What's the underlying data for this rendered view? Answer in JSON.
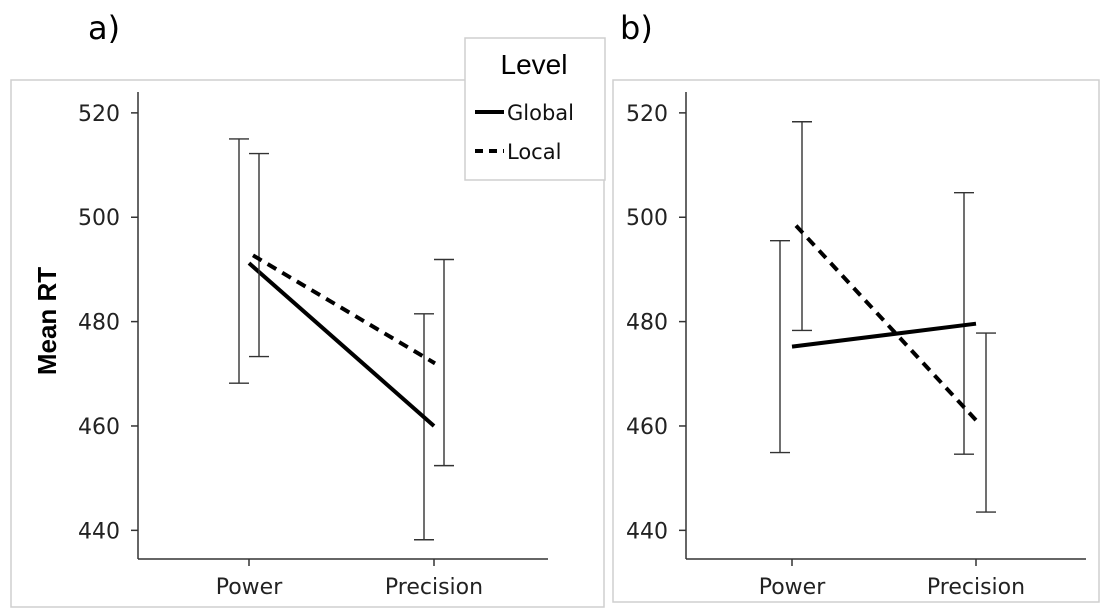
{
  "chart_data": [
    {
      "type": "line",
      "panel_label": "a)",
      "ylabel": "Mean RT",
      "xlabel": "",
      "categories": [
        "Power",
        "Precision"
      ],
      "ylim": [
        437,
        524
      ],
      "yticks": [
        440,
        460,
        480,
        500,
        520
      ],
      "grid": false,
      "series": [
        {
          "name": "Global",
          "style": "solid",
          "values": [
            491.2,
            460.0
          ],
          "errors": [
            [
              468.2,
              515.0
            ],
            [
              438.2,
              481.5
            ]
          ]
        },
        {
          "name": "Local",
          "style": "dashed",
          "values": [
            492.7,
            472.0
          ],
          "errors": [
            [
              473.3,
              512.2
            ],
            [
              452.4,
              491.9
            ]
          ]
        }
      ],
      "legend": {
        "title": "Level",
        "placement": "top-right",
        "entries": [
          "Global",
          "Local"
        ]
      }
    },
    {
      "type": "line",
      "panel_label": "b)",
      "ylabel": "",
      "xlabel": "",
      "categories": [
        "Power",
        "Precision"
      ],
      "ylim": [
        437,
        524
      ],
      "yticks": [
        440,
        460,
        480,
        500,
        520
      ],
      "grid": false,
      "series": [
        {
          "name": "Global",
          "style": "solid",
          "values": [
            475.2,
            479.6
          ],
          "errors": [
            [
              454.9,
              495.5
            ],
            [
              454.6,
              504.7
            ]
          ]
        },
        {
          "name": "Local",
          "style": "dashed",
          "values": [
            498.4,
            460.9
          ],
          "errors": [
            [
              478.3,
              518.3
            ],
            [
              443.5,
              477.8
            ]
          ]
        }
      ]
    }
  ]
}
